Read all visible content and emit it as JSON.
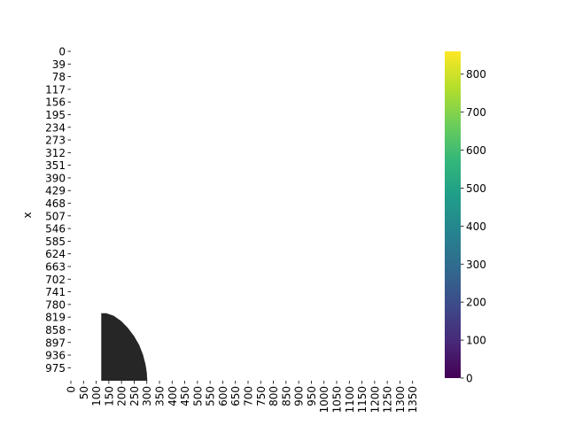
{
  "chart_data": {
    "type": "heatmap",
    "ylabel": "x",
    "xlabel": "",
    "x_ticks": [
      0,
      50,
      100,
      150,
      200,
      250,
      300,
      350,
      400,
      450,
      500,
      550,
      600,
      650,
      700,
      750,
      800,
      850,
      900,
      950,
      1000,
      1050,
      1100,
      1150,
      1200,
      1250,
      1300,
      1350
    ],
    "xlim": [
      0,
      1400
    ],
    "y_ticks": [
      0,
      39,
      78,
      117,
      156,
      195,
      234,
      273,
      312,
      351,
      390,
      429,
      468,
      507,
      546,
      585,
      624,
      663,
      702,
      741,
      780,
      819,
      858,
      897,
      936,
      975
    ],
    "ylim": [
      0,
      1015
    ],
    "colormap": "viridis",
    "colorbar_ticks": [
      0,
      100,
      200,
      300,
      400,
      500,
      600,
      700,
      800
    ],
    "colorbar_range": [
      0,
      860
    ],
    "masked_region": {
      "color": "#262626",
      "x_left": 120,
      "y_top": 807,
      "boundary": [
        [
          120,
          807
        ],
        [
          140,
          807
        ],
        [
          170,
          815
        ],
        [
          200,
          832
        ],
        [
          225,
          852
        ],
        [
          250,
          878
        ],
        [
          270,
          905
        ],
        [
          285,
          935
        ],
        [
          295,
          965
        ],
        [
          300,
          990
        ],
        [
          302,
          1015
        ]
      ]
    }
  }
}
